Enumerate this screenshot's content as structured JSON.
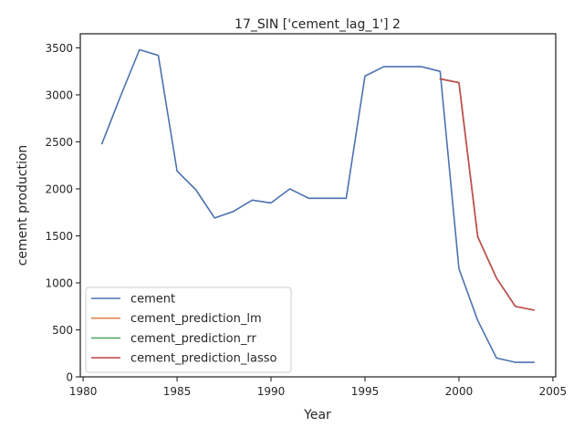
{
  "chart_data": {
    "type": "line",
    "title": "17_SIN ['cement_lag_1'] 2",
    "xlabel": "Year",
    "ylabel": "cement production",
    "xlim": [
      1979.85,
      2005.15
    ],
    "ylim": [
      0,
      3650
    ],
    "xticks": [
      1980,
      1985,
      1990,
      1995,
      2000,
      2005
    ],
    "yticks": [
      0,
      500,
      1000,
      1500,
      2000,
      2500,
      3000,
      3500
    ],
    "grid": false,
    "legend_position": "lower-left",
    "series": [
      {
        "name": "cement",
        "color": "#4c72b0",
        "x": [
          1981,
          1982,
          1983,
          1984,
          1985,
          1986,
          1987,
          1988,
          1989,
          1990,
          1991,
          1992,
          1993,
          1994,
          1995,
          1996,
          1997,
          1998,
          1999,
          2000,
          2001,
          2002,
          2003,
          2004
        ],
        "y": [
          2480,
          2990,
          3480,
          3420,
          2190,
          1990,
          1690,
          1760,
          1880,
          1850,
          2000,
          1900,
          1900,
          1900,
          3200,
          3300,
          3300,
          3300,
          3250,
          1150,
          600,
          200,
          155,
          155
        ]
      },
      {
        "name": "cement_prediction_lm",
        "color": "#dd8452",
        "x": [
          1999,
          2000,
          2001,
          2002,
          2003,
          2004
        ],
        "y": [
          3170,
          3130,
          1490,
          1050,
          750,
          710
        ]
      },
      {
        "name": "cement_prediction_rr",
        "color": "#55a868",
        "x": [
          1999,
          2000,
          2001,
          2002,
          2003,
          2004
        ],
        "y": [
          3170,
          3130,
          1490,
          1050,
          750,
          710
        ]
      },
      {
        "name": "cement_prediction_lasso",
        "color": "#c44e52",
        "x": [
          1999,
          2000,
          2001,
          2002,
          2003,
          2004
        ],
        "y": [
          3170,
          3130,
          1490,
          1050,
          750,
          710
        ]
      }
    ]
  }
}
